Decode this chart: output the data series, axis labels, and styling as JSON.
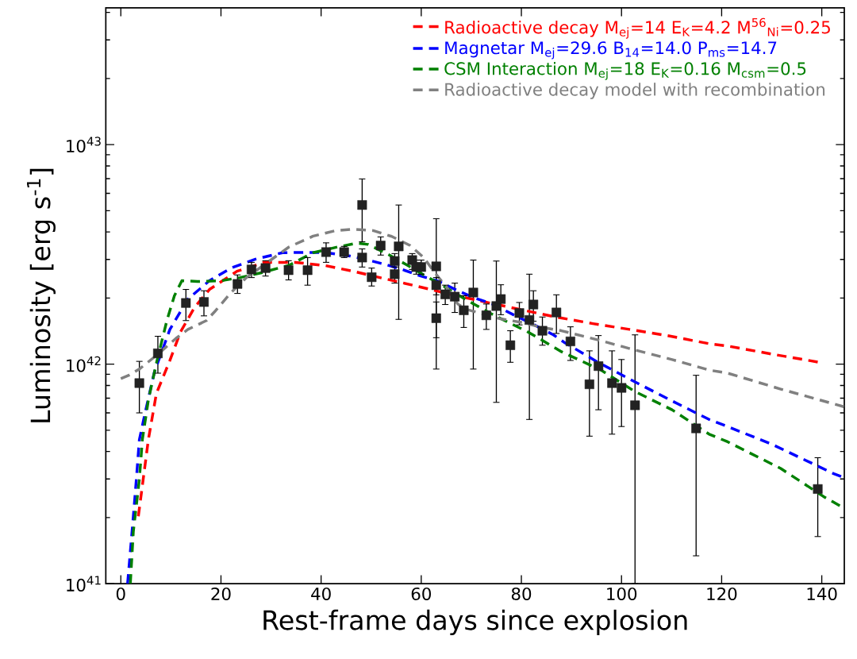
{
  "chart_data": {
    "type": "scatter",
    "xlabel": "Rest-frame days since explosion",
    "ylabel": "Luminosity [erg s$^{-1}$]",
    "xlim": [
      -3,
      144.5
    ],
    "ylim": [
      1e+41,
      4.2e+43
    ],
    "log": "y",
    "xticks": [
      0,
      20,
      40,
      60,
      80,
      100,
      120,
      140
    ],
    "yticks": [
      {
        "value": 1e+41,
        "label": "10$^{41}$"
      },
      {
        "value": 2e+41,
        "label": null
      },
      {
        "value": 3e+41,
        "label": null
      },
      {
        "value": 4e+41,
        "label": null
      },
      {
        "value": 5e+41,
        "label": null
      },
      {
        "value": 6e+41,
        "label": null
      },
      {
        "value": 7e+41,
        "label": null
      },
      {
        "value": 8e+41,
        "label": null
      },
      {
        "value": 9e+41,
        "label": null
      },
      {
        "value": 1e+42,
        "label": "10$^{42}$"
      },
      {
        "value": 2e+42,
        "label": null
      },
      {
        "value": 3e+42,
        "label": null
      },
      {
        "value": 4e+42,
        "label": null
      },
      {
        "value": 5e+42,
        "label": null
      },
      {
        "value": 6e+42,
        "label": null
      },
      {
        "value": 7e+42,
        "label": null
      },
      {
        "value": 8e+42,
        "label": null
      },
      {
        "value": 9e+42,
        "label": null
      },
      {
        "value": 1e+43,
        "label": "10$^{43}$"
      },
      {
        "value": 2e+43,
        "label": null
      },
      {
        "value": 3e+43,
        "label": null
      },
      {
        "value": 4e+43,
        "label": null
      }
    ],
    "legend": "top right",
    "series": [
      {
        "marker": "square",
        "color": "#222222",
        "x": [
          3.7,
          7.4,
          13.0,
          16.6,
          23.3,
          26.1,
          28.9,
          33.5,
          37.3,
          41.0,
          44.6,
          48.2,
          48.2,
          50.1,
          51.9,
          54.7,
          54.7,
          55.5,
          58.2,
          59.0,
          60.0,
          63.0,
          63.0,
          63.0,
          64.8,
          66.7,
          68.5,
          70.4,
          73.0,
          75.0,
          75.9,
          77.8,
          79.6,
          81.6,
          82.4,
          84.2,
          87.0,
          89.8,
          93.6,
          95.4,
          98.1,
          100.0,
          102.7,
          114.9,
          139.2
        ],
        "values": [
          8.2e+41,
          1.12e+42,
          1.9e+42,
          1.92e+42,
          2.32e+42,
          2.7e+42,
          2.74e+42,
          2.68e+42,
          2.68e+42,
          3.24e+42,
          3.24e+42,
          5.31e+42,
          3.06e+42,
          2.49e+42,
          3.47e+42,
          2.95e+42,
          2.57e+42,
          3.44e+42,
          2.98e+42,
          2.77e+42,
          2.77e+42,
          2.79e+42,
          2.29e+42,
          1.62e+42,
          2.08e+42,
          2.03e+42,
          1.76e+42,
          2.12e+42,
          1.67e+42,
          1.84e+42,
          1.98e+42,
          1.22e+42,
          1.71e+42,
          1.59e+42,
          1.87e+42,
          1.42e+42,
          1.72e+42,
          1.27e+42,
          8.1e+41,
          9.8e+41,
          8.2e+41,
          7.8e+41,
          6.5e+41,
          5.1e+41,
          2.7e+41
        ],
        "errors": [
          [
            6e+41,
            1.03e+42
          ],
          [
            9.1e+41,
            1.34e+42
          ],
          [
            1.58e+42,
            2.19e+42
          ],
          [
            1.66e+42,
            2.16e+42
          ],
          [
            2.1e+42,
            2.55e+42
          ],
          [
            2.48e+42,
            2.91e+42
          ],
          [
            2.52e+42,
            2.96e+42
          ],
          [
            2.42e+42,
            2.96e+42
          ],
          [
            2.29e+42,
            3.06e+42
          ],
          [
            2.91e+42,
            3.57e+42
          ],
          [
            3.06e+42,
            3.44e+42
          ],
          [
            3.61e+42,
            6.98e+42
          ],
          [
            2.77e+42,
            3.35e+42
          ],
          [
            2.27e+42,
            2.74e+42
          ],
          [
            3.14e+42,
            3.8e+42
          ],
          [
            2.77e+42,
            3.19e+42
          ],
          [
            2.34e+42,
            2.77e+42
          ],
          [
            1.6e+42,
            5.31e+42
          ],
          [
            2.7e+42,
            3.19e+42
          ],
          [
            2.57e+42,
            2.98e+42
          ],
          [
            2.57e+42,
            2.98e+42
          ],
          [
            9.5e+41,
            4.6e+42
          ],
          [
            2.07e+42,
            2.48e+42
          ],
          [
            1.32e+42,
            1.92e+42
          ],
          [
            1.87e+42,
            2.29e+42
          ],
          [
            1.72e+42,
            2.34e+42
          ],
          [
            1.47e+42,
            2.05e+42
          ],
          [
            9.5e+41,
            2.98e+42
          ],
          [
            1.44e+42,
            1.88e+42
          ],
          [
            6.7e+41,
            2.95e+42
          ],
          [
            1.68e+42,
            2.3e+42
          ],
          [
            1.02e+42,
            1.42e+42
          ],
          [
            1.51e+42,
            1.91e+42
          ],
          [
            5.6e+41,
            2.57e+42
          ],
          [
            1.57e+42,
            2.16e+42
          ],
          [
            1.22e+42,
            1.64e+42
          ],
          [
            1.38e+42,
            2.07e+42
          ],
          [
            1.04e+42,
            1.48e+42
          ],
          [
            4.7e+41,
            1.15e+42
          ],
          [
            6.2e+41,
            1.35e+42
          ],
          [
            4.8e+41,
            1.15e+42
          ],
          [
            5.2e+41,
            1.05e+42
          ],
          [
            1e+41,
            1.36e+42
          ],
          [
            1.34e+41,
            8.9e+41
          ],
          [
            1.64e+41,
            3.75e+41
          ]
        ]
      },
      {
        "type": "line",
        "line_style": "dashed",
        "name": "Radioactive decay M$_{ej}$=14 E$_{K}$=4.2 M$^{56}$$_{Ni}$=0.25",
        "color": "#ff0000",
        "x": [
          3.5,
          3.9,
          5.5,
          7.1,
          9.8,
          11.9,
          14.7,
          17.7,
          23.2,
          28.7,
          34.8,
          40.9,
          46.1,
          50.4,
          58.3,
          66.3,
          73.7,
          81.0,
          86.9,
          94.3,
          101.6,
          109.1,
          117.5,
          121.2,
          130.2,
          139.5
        ],
        "values": [
          2.03e+41,
          2.38e+41,
          4.53e+41,
          7.35e+41,
          1.04e+42,
          1.4e+42,
          1.81e+42,
          2.19e+42,
          2.65e+42,
          2.91e+42,
          2.91e+42,
          2.81e+42,
          2.66e+42,
          2.52e+42,
          2.29e+42,
          2.07e+42,
          1.9e+42,
          1.75e+42,
          1.64e+42,
          1.53e+42,
          1.44e+42,
          1.35e+42,
          1.24e+42,
          1.21e+42,
          1.11e+42,
          1.02e+42
        ]
      },
      {
        "type": "line",
        "line_style": "dashed",
        "name": "Magnetar M$_{ej}$=29.6 B$_{14}$=14.0 P$_{ms}$=14.7",
        "color": "#0000ff",
        "x": [
          1.35,
          2.5,
          3.1,
          3.7,
          4.9,
          6.7,
          9.8,
          13.4,
          17.7,
          22.0,
          26.9,
          32.3,
          37.2,
          40.9,
          45.8,
          48.3,
          52.5,
          56.2,
          59.9,
          63.6,
          67.3,
          70.5,
          74.2,
          78.4,
          82.1,
          86.4,
          88.5,
          95.3,
          102.7,
          110.1,
          117.5,
          121.2,
          130.2,
          142.4,
          144.4
        ],
        "values": [
          1e+41,
          2.03e+41,
          2.99e+41,
          4.53e+41,
          6.07e+41,
          9.2e+41,
          1.44e+42,
          1.98e+42,
          2.4e+42,
          2.74e+42,
          3.01e+42,
          3.22e+42,
          3.23e+42,
          3.22e+42,
          3.11e+42,
          3.02e+42,
          2.86e+42,
          2.7e+42,
          2.52e+42,
          2.38e+42,
          2.16e+42,
          2.01e+42,
          1.88e+42,
          1.68e+42,
          1.53e+42,
          1.36e+42,
          1.26e+42,
          1.02e+42,
          8.3e+41,
          6.8e+41,
          5.6e+41,
          5.2e+41,
          4.3e+41,
          3.17e+41,
          3.05e+41
        ]
      },
      {
        "type": "line",
        "line_style": "dashed",
        "name": "CSM Interaction M$_{ej}$=18 E$_{K}$=0.16 M$_{csm}$=0.5",
        "color": "#008000",
        "x": [
          1.9,
          2.5,
          3.7,
          4.3,
          5.5,
          7.1,
          9.2,
          10.7,
          12.2,
          15.3,
          20.1,
          23.8,
          28.1,
          33.6,
          38.4,
          43.3,
          47.2,
          49.4,
          53.1,
          56.8,
          60.5,
          64.2,
          67.3,
          70.5,
          73.7,
          77.9,
          81.1,
          84.8,
          88.0,
          95.9,
          102.7,
          110.1,
          117.5,
          121.2,
          131.8,
          140.3,
          144.4
        ],
        "values": [
          1e+41,
          1.73e+41,
          2.99e+41,
          4.53e+41,
          6.87e+41,
          1.01e+42,
          1.58e+42,
          2.05e+42,
          2.4e+42,
          2.38e+42,
          2.4e+42,
          2.48e+42,
          2.61e+42,
          2.82e+42,
          3.22e+42,
          3.42e+42,
          3.56e+42,
          3.51e+42,
          3.19e+42,
          2.86e+42,
          2.55e+42,
          2.29e+42,
          2.07e+42,
          1.88e+42,
          1.71e+42,
          1.53e+42,
          1.41e+42,
          1.26e+42,
          1.14e+42,
          9.4e+41,
          7.5e+41,
          6.2e+41,
          4.8e+41,
          4.43e+41,
          3.35e+41,
          2.5e+41,
          2.21e+41
        ]
      },
      {
        "type": "line",
        "line_style": "dashed",
        "name": "Radioactive decay model with recombination",
        "color": "#808080",
        "x": [
          0,
          1.6,
          3.7,
          7.4,
          11.0,
          13.4,
          17.1,
          18.9,
          22.0,
          25.1,
          29.3,
          33.6,
          38.4,
          42.7,
          46.2,
          50.4,
          54.1,
          57.8,
          60.5,
          62.6,
          65.2,
          67.3,
          68.9,
          71.6,
          75.8,
          80.0,
          84.2,
          88.0,
          95.3,
          102.7,
          110.1,
          117.5,
          121.2,
          131.8,
          140.3,
          144.4
        ],
        "values": [
          8.6e+41,
          8.9e+41,
          9.5e+41,
          1.11e+42,
          1.31e+42,
          1.44e+42,
          1.58e+42,
          1.75e+42,
          2.12e+42,
          2.48e+42,
          2.91e+42,
          3.42e+42,
          3.83e+42,
          4.05e+42,
          4.12e+42,
          4.06e+42,
          3.82e+42,
          3.47e+42,
          3.06e+42,
          2.63e+42,
          2.22e+42,
          1.88e+42,
          1.78e+42,
          1.71e+42,
          1.61e+42,
          1.55e+42,
          1.47e+42,
          1.42e+42,
          1.29e+42,
          1.16e+42,
          1.05e+42,
          9.4e+41,
          9.1e+41,
          7.7e+41,
          6.8e+41,
          6.4e+41
        ]
      }
    ]
  }
}
